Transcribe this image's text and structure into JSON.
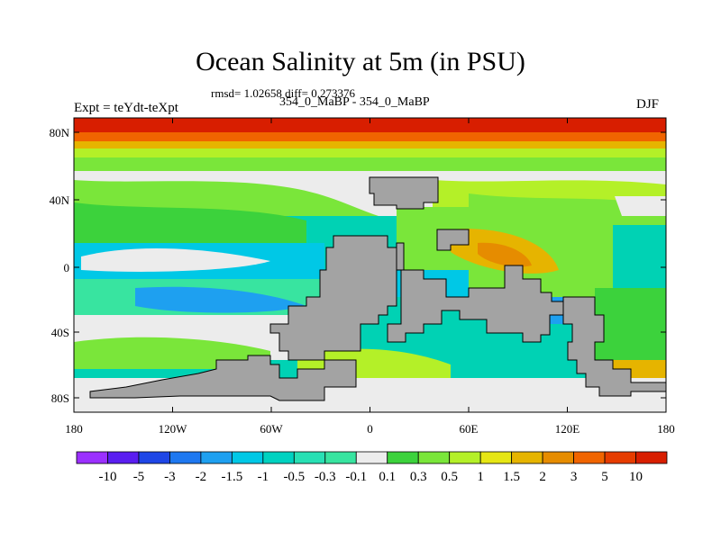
{
  "title": "Ocean Salinity at 5m (in PSU)",
  "stats": "rmsd= 1.02658  diff= 0.273376",
  "runs": "354_0_MaBP - 354_0_MaBP",
  "left_label": "Expt = teYdt-teXpt",
  "right_label": "DJF",
  "map": {
    "lat_ticks": [
      "80N",
      "40N",
      "0",
      "40S",
      "80S"
    ],
    "lon_ticks": [
      "180",
      "120W",
      "60W",
      "0",
      "60E",
      "120E",
      "180"
    ],
    "land_color": "#a3a3a3",
    "ocean_color": "#00d2b4"
  },
  "colorbar": {
    "labels": [
      "-10",
      "-5",
      "-3",
      "-2",
      "-1.5",
      "-1",
      "-0.5",
      "-0.3",
      "-0.1",
      "0.1",
      "0.3",
      "0.5",
      "1",
      "1.5",
      "2",
      "3",
      "5",
      "10"
    ],
    "colors": [
      "#9b30ff",
      "#5a1ef0",
      "#1e46e6",
      "#1e78f0",
      "#1ea0f0",
      "#00c8e6",
      "#00d2c0",
      "#28e0b4",
      "#38e4a0",
      "#ececec",
      "#3cd23c",
      "#7ae63a",
      "#b4f028",
      "#e6e614",
      "#e6b400",
      "#e68c00",
      "#f06400",
      "#e63c00",
      "#d81e00"
    ]
  }
}
